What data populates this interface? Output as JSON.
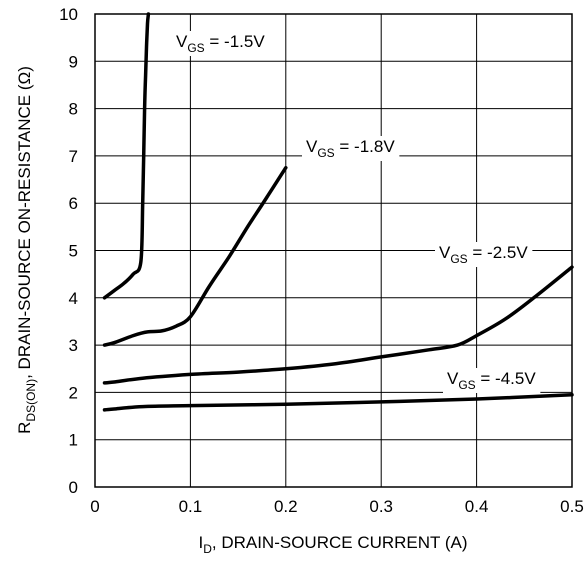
{
  "chart_data": {
    "type": "line",
    "title": "",
    "xlabel": {
      "main": "I",
      "sub": "D",
      "rest": ", DRAIN-SOURCE CURRENT (A)"
    },
    "ylabel": {
      "main": "R",
      "sub": "DS(ON)",
      "rest": ", DRAIN-SOURCE ON-RESISTANCE (Ω)"
    },
    "xlim": [
      0,
      0.5
    ],
    "ylim": [
      0,
      10
    ],
    "xticks": [
      "0",
      "0.1",
      "0.2",
      "0.3",
      "0.4",
      "0.5"
    ],
    "yticks": [
      "0",
      "1",
      "2",
      "3",
      "4",
      "5",
      "6",
      "7",
      "8",
      "9",
      "10"
    ],
    "grid": true,
    "line_color": "#000000",
    "series": [
      {
        "name": "VGS = -1.5V",
        "label": {
          "main": "V",
          "sub": "GS",
          "rest": " = -1.5V"
        },
        "x": [
          0.01,
          0.02,
          0.03,
          0.04,
          0.048,
          0.05,
          0.051,
          0.052,
          0.053,
          0.054,
          0.055,
          0.056
        ],
        "y": [
          4.0,
          4.15,
          4.3,
          4.5,
          4.75,
          6.0,
          7.0,
          8.0,
          8.7,
          9.3,
          9.8,
          10.0
        ]
      },
      {
        "name": "VGS = -1.8V",
        "label": {
          "main": "V",
          "sub": "GS",
          "rest": " = -1.8V"
        },
        "x": [
          0.01,
          0.02,
          0.04,
          0.055,
          0.07,
          0.085,
          0.1,
          0.12,
          0.14,
          0.16,
          0.18,
          0.2
        ],
        "y": [
          3.0,
          3.05,
          3.2,
          3.28,
          3.3,
          3.4,
          3.6,
          4.25,
          4.85,
          5.5,
          6.12,
          6.75
        ]
      },
      {
        "name": "VGS = -2.5V",
        "label": {
          "main": "V",
          "sub": "GS",
          "rest": " = -2.5V"
        },
        "x": [
          0.01,
          0.02,
          0.05,
          0.1,
          0.15,
          0.2,
          0.25,
          0.3,
          0.35,
          0.38,
          0.4,
          0.43,
          0.46,
          0.5
        ],
        "y": [
          2.2,
          2.22,
          2.3,
          2.38,
          2.43,
          2.5,
          2.6,
          2.75,
          2.9,
          3.0,
          3.2,
          3.55,
          4.0,
          4.65
        ]
      },
      {
        "name": "VGS = -4.5V",
        "label": {
          "main": "V",
          "sub": "GS",
          "rest": " = -4.5V"
        },
        "x": [
          0.01,
          0.02,
          0.05,
          0.1,
          0.2,
          0.3,
          0.4,
          0.5
        ],
        "y": [
          1.63,
          1.65,
          1.7,
          1.72,
          1.75,
          1.8,
          1.86,
          1.95
        ]
      }
    ]
  }
}
